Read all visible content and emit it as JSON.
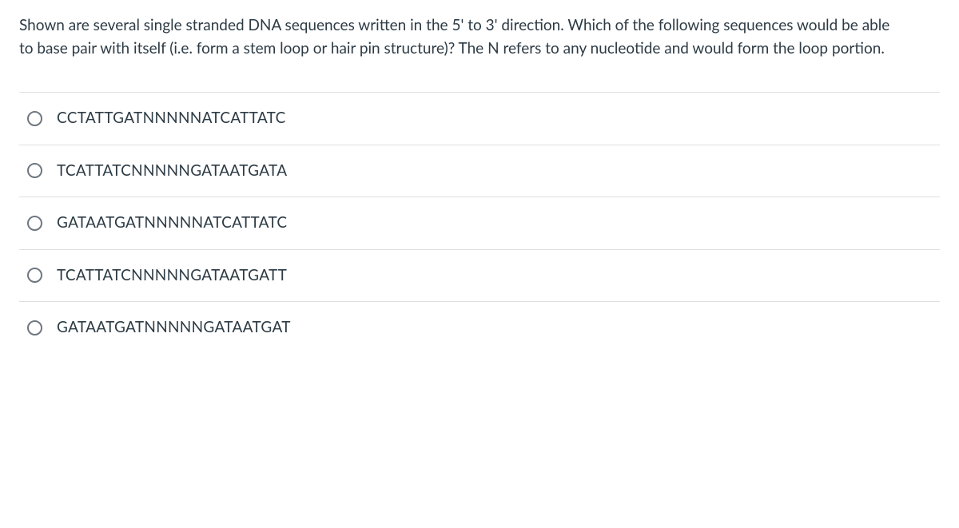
{
  "question": {
    "stem": "Shown are several single stranded DNA sequences written in the 5' to 3' direction. Which of the following sequences would be able to base pair with itself (i.e. form a stem loop or hair pin structure)? The N refers to any nucleotide and would form the loop portion."
  },
  "options": [
    {
      "text": "CCTATTGATNNNNNATCATTATC"
    },
    {
      "text": "TCATTATCNNNNNGATAATGATA"
    },
    {
      "text": "GATAATGATNNNNNATCATTATC"
    },
    {
      "text": "TCATTATCNNNNNGATAATGATT"
    },
    {
      "text": "GATAATGATNNNNNGATAATGAT"
    }
  ],
  "styling": {
    "text_color": "#2d3b45",
    "border_color": "#e0e0e0",
    "radio_border_color": "#6f7780",
    "background_color": "#ffffff",
    "font_size_pt": 14,
    "line_height": 1.5
  }
}
